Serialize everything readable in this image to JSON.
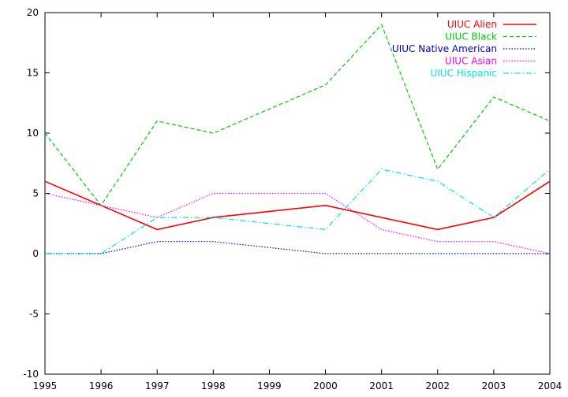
{
  "chart_data": {
    "type": "line",
    "x": [
      1995,
      1996,
      1997,
      1998,
      1999,
      2000,
      2001,
      2002,
      2003,
      2004
    ],
    "xlim": [
      1995,
      2004
    ],
    "ylim": [
      -10,
      20
    ],
    "x_ticks": [
      "1995",
      "1996",
      "1997",
      "1998",
      "1999",
      "2000",
      "2001",
      "2002",
      "2003",
      "2004"
    ],
    "y_ticks": [
      "-10",
      "-5",
      "0",
      "5",
      "10",
      "15",
      "20"
    ],
    "grid": false,
    "legend_position": "top-right",
    "series": [
      {
        "name": "UIUC Alien",
        "color": "#ff0000",
        "style": "solid",
        "x": [
          1995,
          1996,
          1997,
          1998,
          2000,
          2002,
          2003,
          2004
        ],
        "values": [
          6,
          4,
          2,
          3,
          4,
          2,
          3,
          6
        ]
      },
      {
        "name": "UIUC Black",
        "color": "#00cc00",
        "style": "dashed",
        "x": [
          1995,
          1996,
          1997,
          1998,
          2000,
          2001,
          2002,
          2003,
          2004
        ],
        "values": [
          10,
          4,
          11,
          10,
          14,
          19,
          7,
          13,
          11
        ]
      },
      {
        "name": "UIUC Native American",
        "color": "#0000cc",
        "style": "dotted",
        "x": [
          1995,
          1996,
          1997,
          1998,
          2000,
          2001,
          2002,
          2003,
          2004
        ],
        "values": [
          0,
          0,
          1,
          1,
          0,
          0,
          0,
          0,
          0
        ]
      },
      {
        "name": "UIUC Asian",
        "color": "#ff00ff",
        "style": "dotted",
        "x": [
          1995,
          1996,
          1997,
          1998,
          2000,
          2001,
          2002,
          2003,
          2004
        ],
        "values": [
          5,
          4,
          3,
          5,
          5,
          2,
          1,
          1,
          0
        ]
      },
      {
        "name": "UIUC Hispanic",
        "color": "#00e5e5",
        "style": "dashdot",
        "x": [
          1995,
          1996,
          1997,
          1998,
          2000,
          2001,
          2002,
          2003,
          2004
        ],
        "values": [
          0,
          0,
          3,
          3,
          2,
          7,
          6,
          3,
          7
        ]
      }
    ]
  }
}
